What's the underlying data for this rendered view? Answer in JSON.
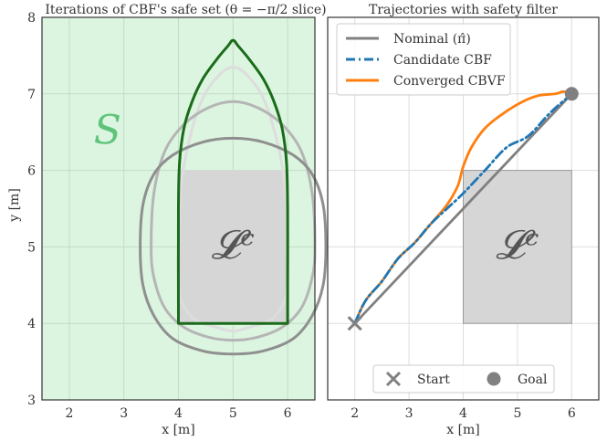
{
  "chart_data": [
    {
      "type": "line",
      "title": "Iterations of CBF's safe set (θ = −π/2 slice)",
      "xlabel": "x [m]",
      "ylabel": "y [m]",
      "xlim": [
        1.5,
        6.5
      ],
      "ylim": [
        3,
        8
      ],
      "xticks": [
        "2",
        "3",
        "4",
        "5",
        "6"
      ],
      "yticks": [
        "3",
        "4",
        "5",
        "6",
        "7",
        "8"
      ],
      "grid": true,
      "background_color": "#dcf5e0",
      "set_label": "S",
      "obstacle_label": "𝓛ᶜ",
      "obstacle": {
        "x": [
          4,
          6
        ],
        "y": [
          4,
          6
        ],
        "color": "#d6d6d6"
      },
      "series": [
        {
          "color": "#dddddd",
          "x": [
            4.0,
            4.05,
            4.2,
            4.45,
            4.75,
            5.0,
            5.25,
            5.55,
            5.8,
            5.95,
            6.0,
            6.0,
            5.95,
            5.7,
            5.3,
            5.0,
            4.7,
            4.3,
            4.05,
            4.0
          ],
          "y": [
            5.0,
            5.8,
            6.4,
            6.95,
            7.25,
            7.35,
            7.25,
            6.95,
            6.4,
            5.8,
            5.0,
            4.6,
            4.3,
            4.05,
            3.95,
            3.9,
            3.95,
            4.05,
            4.3,
            4.6
          ]
        },
        {
          "color": "#b5b5b5",
          "x": [
            3.5,
            3.55,
            3.75,
            4.1,
            4.55,
            5.0,
            5.45,
            5.9,
            6.25,
            6.45,
            6.5,
            6.45,
            6.25,
            5.9,
            5.45,
            5.0,
            4.55,
            4.1,
            3.75,
            3.55
          ],
          "y": [
            5.0,
            5.7,
            6.25,
            6.6,
            6.82,
            6.9,
            6.82,
            6.6,
            6.25,
            5.7,
            5.0,
            4.6,
            4.2,
            3.95,
            3.82,
            3.78,
            3.82,
            3.95,
            4.2,
            4.6
          ]
        },
        {
          "color": "#8f8f8f",
          "x": [
            3.3,
            3.35,
            3.55,
            3.9,
            4.45,
            5.0,
            5.55,
            6.1,
            6.45,
            6.65,
            6.7,
            6.65,
            6.45,
            6.1,
            5.55,
            5.0,
            4.45,
            3.9,
            3.55,
            3.35
          ],
          "y": [
            5.0,
            5.55,
            5.95,
            6.2,
            6.37,
            6.42,
            6.37,
            6.2,
            5.95,
            5.55,
            5.0,
            4.5,
            4.1,
            3.8,
            3.64,
            3.6,
            3.64,
            3.8,
            4.1,
            4.5
          ]
        },
        {
          "color": "#1a6b1a",
          "x": [
            4.0,
            4.0,
            4.02,
            4.1,
            4.25,
            4.45,
            4.7,
            4.9,
            5.0,
            5.1,
            5.3,
            5.55,
            5.75,
            5.9,
            5.98,
            6.0,
            6.0,
            6.0,
            4.0,
            4.0
          ],
          "y": [
            4.0,
            5.5,
            6.1,
            6.55,
            6.9,
            7.2,
            7.45,
            7.62,
            7.7,
            7.62,
            7.45,
            7.2,
            6.9,
            6.55,
            6.1,
            5.5,
            4.6,
            4.0,
            4.0,
            4.6
          ]
        }
      ]
    },
    {
      "type": "line",
      "title": "Trajectories with safety filter",
      "xlabel": "x [m]",
      "xlim": [
        1.5,
        6.5
      ],
      "ylim": [
        3,
        8
      ],
      "xticks": [
        "2",
        "3",
        "4",
        "5",
        "6"
      ],
      "grid": true,
      "obstacle_label": "𝓛ᶜ",
      "obstacle": {
        "x": [
          4,
          6
        ],
        "y": [
          4,
          6
        ],
        "color": "#d6d6d6"
      },
      "series": [
        {
          "name": "Nominal (π̂)",
          "color": "#808080",
          "style": "solid",
          "x": [
            2,
            6
          ],
          "y": [
            4,
            7
          ]
        },
        {
          "name": "Candidate CBF",
          "color": "#1f77b4",
          "style": "dashdot",
          "x": [
            2.0,
            2.2,
            2.5,
            2.8,
            3.1,
            3.4,
            3.7,
            4.0,
            4.4,
            4.8,
            5.2,
            5.6,
            6.0
          ],
          "y": [
            4.0,
            4.3,
            4.55,
            4.85,
            5.05,
            5.3,
            5.5,
            5.7,
            6.0,
            6.3,
            6.45,
            6.75,
            7.0
          ]
        },
        {
          "name": "Converged CBVF",
          "color": "#ff7f0e",
          "style": "solid",
          "x": [
            2.0,
            2.2,
            2.5,
            2.8,
            3.1,
            3.4,
            3.7,
            3.9,
            4.0,
            4.15,
            4.4,
            4.75,
            5.1,
            5.4,
            5.7,
            5.85,
            6.0
          ],
          "y": [
            4.0,
            4.3,
            4.55,
            4.85,
            5.05,
            5.3,
            5.55,
            5.8,
            6.05,
            6.3,
            6.55,
            6.75,
            6.9,
            6.98,
            7.0,
            7.03,
            7.0
          ]
        }
      ],
      "markers": [
        {
          "name": "Start",
          "shape": "x",
          "x": 2,
          "y": 4,
          "color": "#808080"
        },
        {
          "name": "Goal",
          "shape": "circle",
          "x": 6,
          "y": 7,
          "color": "#808080"
        }
      ]
    }
  ]
}
